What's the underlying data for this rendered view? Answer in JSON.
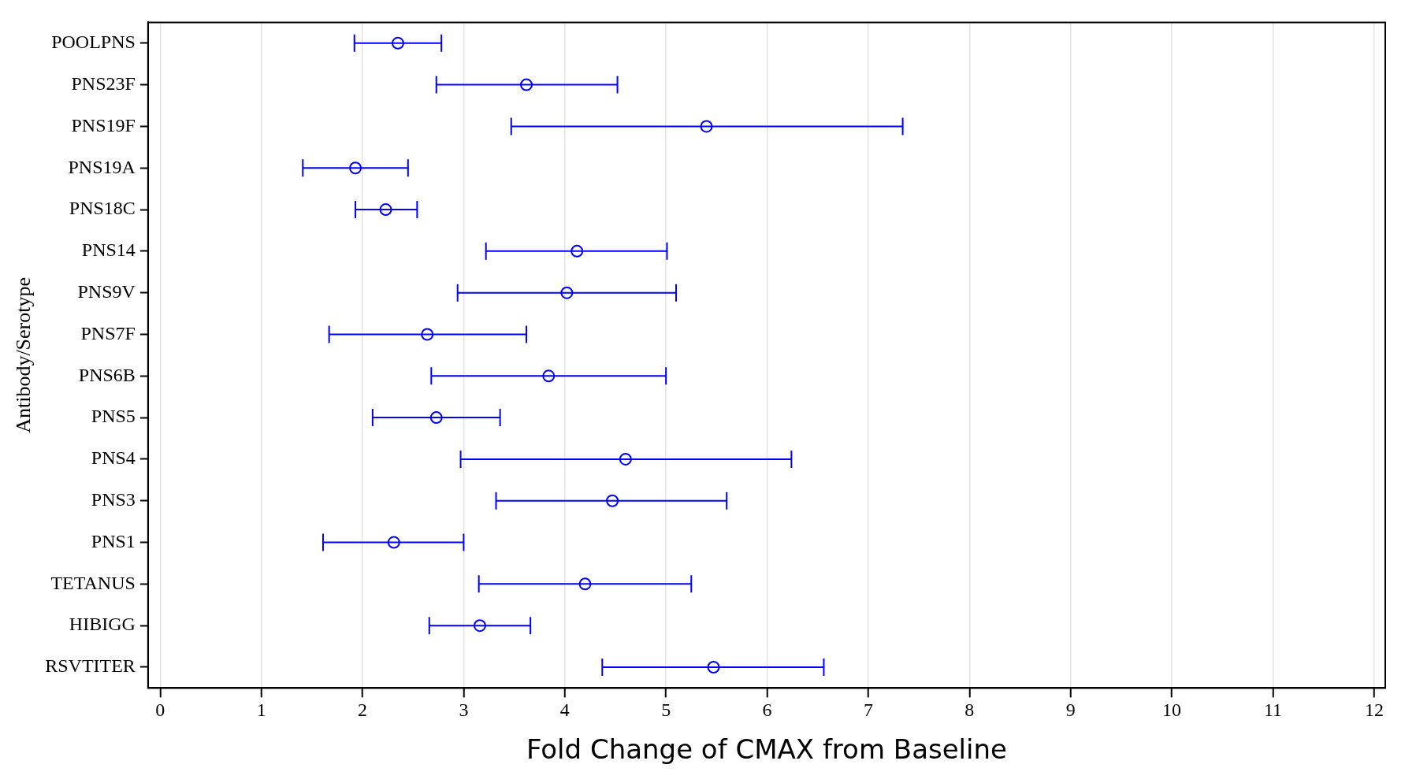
{
  "chart_data": {
    "type": "scatter",
    "orientation": "horizontal",
    "xlabel": "Fold Change of CMAX from Baseline",
    "ylabel": "Antibody/Serotype",
    "categories": [
      "POOLPNS",
      "PNS23F",
      "PNS19F",
      "PNS19A",
      "PNS18C",
      "PNS14",
      "PNS9V",
      "PNS7F",
      "PNS6B",
      "PNS5",
      "PNS4",
      "PNS3",
      "PNS1",
      "TETANUS",
      "HIBIGG",
      "RSVTITER"
    ],
    "values": [
      2.35,
      3.62,
      5.4,
      1.93,
      2.23,
      4.12,
      4.02,
      2.64,
      3.84,
      2.73,
      4.6,
      4.47,
      2.31,
      4.2,
      3.16,
      5.47
    ],
    "errors": [
      [
        1.92,
        2.78
      ],
      [
        2.73,
        4.52
      ],
      [
        3.47,
        7.34
      ],
      [
        1.41,
        2.45
      ],
      [
        1.93,
        2.54
      ],
      [
        3.22,
        5.01
      ],
      [
        2.94,
        5.1
      ],
      [
        1.67,
        3.62
      ],
      [
        2.68,
        5.0
      ],
      [
        2.1,
        3.36
      ],
      [
        2.97,
        6.24
      ],
      [
        3.32,
        5.6
      ],
      [
        1.61,
        3.0
      ],
      [
        3.15,
        5.25
      ],
      [
        2.66,
        3.66
      ],
      [
        4.37,
        6.56
      ]
    ],
    "color": "#0000ff",
    "marker": "circle",
    "grid": "x",
    "xlim": [
      -0.12,
      12.11
    ],
    "xticks": [
      0,
      1,
      2,
      3,
      4,
      5,
      6,
      7,
      8,
      9,
      10,
      11,
      12
    ]
  }
}
